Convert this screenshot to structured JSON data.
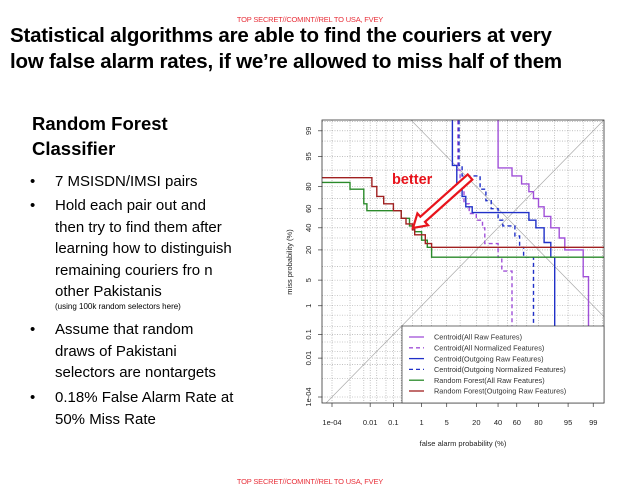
{
  "classification_top": "TOP SECRET//COMINT//REL TO USA, FVEY",
  "classification_bottom": "TOP SECRET//COMINT//REL TO USA, FVEY",
  "title_lines": [
    "Statistical algorithms are able to find the couriers at very",
    "low false alarm rates, if we’re allowed to miss half of them"
  ],
  "heading_lines": [
    "Random Forest",
    "Classifier"
  ],
  "bullets": [
    {
      "lines": [
        "7 MSISDN/IMSI pairs"
      ]
    },
    {
      "lines": [
        "Hold each pair out and",
        "then try to find them after",
        "learning how to distinguish",
        "remaining couriers fro n",
        "other Pakistanis"
      ],
      "note": "(using 100k random selectors here)"
    },
    {
      "lines": [
        "Assume that random",
        "draws of Pakistani",
        "selectors are nontargets"
      ]
    },
    {
      "lines": [
        "0.18% False Alarm Rate at",
        "50% Miss Rate"
      ]
    }
  ],
  "chart_data": {
    "type": "line",
    "plot_kind": "DET curve (normal-deviate / probit scaled axes)",
    "xlabel": "false alarm probability (%)",
    "ylabel": "miss probability (%)",
    "x_scale": "probit",
    "y_scale": "probit",
    "xlim": [
      3e-05,
      99.55
    ],
    "ylim": [
      3e-05,
      99.55
    ],
    "grid": true,
    "legend_position": "bottom-right",
    "x_ticks": [
      {
        "v": 0.0001,
        "label": "1e-04"
      },
      {
        "v": 0.01,
        "label": "0.01"
      },
      {
        "v": 0.1,
        "label": "0.1"
      },
      {
        "v": 1,
        "label": "1"
      },
      {
        "v": 5,
        "label": "5"
      },
      {
        "v": 20,
        "label": "20"
      },
      {
        "v": 40,
        "label": "40"
      },
      {
        "v": 60,
        "label": "60"
      },
      {
        "v": 80,
        "label": "80"
      },
      {
        "v": 95,
        "label": "95"
      },
      {
        "v": 99,
        "label": "99"
      }
    ],
    "y_ticks": [
      {
        "v": 0.0001,
        "label": "1e-04"
      },
      {
        "v": 0.01,
        "label": "0.01"
      },
      {
        "v": 0.1,
        "label": "0.1"
      },
      {
        "v": 1,
        "label": "1"
      },
      {
        "v": 5,
        "label": "5"
      },
      {
        "v": 20,
        "label": "20"
      },
      {
        "v": 40,
        "label": "40"
      },
      {
        "v": 60,
        "label": "60"
      },
      {
        "v": 80,
        "label": "80"
      },
      {
        "v": 95,
        "label": "95"
      },
      {
        "v": 99,
        "label": "99"
      }
    ],
    "annotation": {
      "text": "better",
      "color": "#e8141c"
    },
    "series": [
      {
        "name": "Centroid(All Raw Features)",
        "color": "#a050d8",
        "dash": false,
        "points": [
          [
            40,
            99.99
          ],
          [
            40,
            91
          ],
          [
            55,
            91
          ],
          [
            55,
            87
          ],
          [
            65,
            87
          ],
          [
            65,
            82
          ],
          [
            72,
            82
          ],
          [
            72,
            76
          ],
          [
            76,
            76
          ],
          [
            76,
            70
          ],
          [
            80,
            70
          ],
          [
            80,
            62
          ],
          [
            84,
            62
          ],
          [
            84,
            52
          ],
          [
            88,
            52
          ],
          [
            88,
            40
          ],
          [
            92,
            40
          ],
          [
            92,
            30
          ],
          [
            94,
            30
          ],
          [
            94,
            20
          ],
          [
            98,
            20
          ],
          [
            98,
            6
          ],
          [
            98.6,
            6
          ],
          [
            98.6,
            1e-05
          ]
        ]
      },
      {
        "name": "Centroid(All Normalized Features)",
        "color": "#a050d8",
        "dash": true,
        "points": [
          [
            9,
            99.99
          ],
          [
            9,
            90
          ],
          [
            10,
            90
          ],
          [
            10,
            80
          ],
          [
            12,
            80
          ],
          [
            12,
            65
          ],
          [
            15,
            65
          ],
          [
            15,
            55
          ],
          [
            20,
            55
          ],
          [
            20,
            48
          ],
          [
            25,
            48
          ],
          [
            25,
            40
          ],
          [
            27,
            40
          ],
          [
            27,
            25
          ],
          [
            40,
            25
          ],
          [
            40,
            15
          ],
          [
            44,
            15
          ],
          [
            44,
            8
          ],
          [
            55,
            8
          ],
          [
            55,
            1e-05
          ]
        ]
      },
      {
        "name": "Centroid(Outgoing Raw Features)",
        "color": "#2030c8",
        "dash": false,
        "points": [
          [
            6.8,
            99.99
          ],
          [
            6.8,
            92
          ],
          [
            8.5,
            92
          ],
          [
            8.5,
            80
          ],
          [
            11,
            80
          ],
          [
            11,
            72
          ],
          [
            13,
            72
          ],
          [
            13,
            62
          ],
          [
            17,
            62
          ],
          [
            17,
            56
          ],
          [
            72,
            56
          ],
          [
            72,
            48
          ],
          [
            78,
            48
          ],
          [
            78,
            40
          ],
          [
            84,
            40
          ],
          [
            84,
            26
          ],
          [
            88,
            26
          ],
          [
            88,
            15
          ],
          [
            90,
            15
          ],
          [
            90,
            1e-05
          ]
        ]
      },
      {
        "name": "Centroid(Outgoing Normalized Features)",
        "color": "#2030c8",
        "dash": true,
        "points": [
          [
            9.5,
            99.99
          ],
          [
            9.5,
            92
          ],
          [
            11,
            92
          ],
          [
            11,
            87
          ],
          [
            23,
            87
          ],
          [
            23,
            78
          ],
          [
            28,
            78
          ],
          [
            28,
            68
          ],
          [
            33,
            68
          ],
          [
            33,
            60
          ],
          [
            40,
            60
          ],
          [
            40,
            48
          ],
          [
            45,
            48
          ],
          [
            45,
            42
          ],
          [
            58,
            42
          ],
          [
            58,
            32
          ],
          [
            63,
            32
          ],
          [
            63,
            22
          ],
          [
            67,
            22
          ],
          [
            67,
            15
          ],
          [
            76,
            15
          ],
          [
            76,
            1e-05
          ]
        ]
      },
      {
        "name": "Random Forest(All Raw Features)",
        "color": "#2a8a2a",
        "dash": false,
        "points": [
          [
            2e-05,
            83
          ],
          [
            0.001,
            83
          ],
          [
            0.001,
            78
          ],
          [
            0.005,
            78
          ],
          [
            0.005,
            65
          ],
          [
            0.007,
            65
          ],
          [
            0.007,
            58
          ],
          [
            0.2,
            58
          ],
          [
            0.2,
            50
          ],
          [
            0.4,
            50
          ],
          [
            0.4,
            42
          ],
          [
            0.6,
            42
          ],
          [
            0.6,
            36
          ],
          [
            1,
            36
          ],
          [
            1,
            28
          ],
          [
            1.5,
            28
          ],
          [
            1.5,
            22
          ],
          [
            2,
            22
          ],
          [
            2,
            15
          ],
          [
            99.9,
            15
          ]
        ]
      },
      {
        "name": "Random Forest(Outgoing Raw Features)",
        "color": "#a02020",
        "dash": false,
        "points": [
          [
            2e-05,
            86
          ],
          [
            0.012,
            86
          ],
          [
            0.012,
            80
          ],
          [
            0.02,
            80
          ],
          [
            0.02,
            72
          ],
          [
            0.04,
            72
          ],
          [
            0.04,
            65
          ],
          [
            0.1,
            65
          ],
          [
            0.1,
            58
          ],
          [
            0.2,
            58
          ],
          [
            0.2,
            50
          ],
          [
            0.3,
            50
          ],
          [
            0.3,
            44
          ],
          [
            0.5,
            44
          ],
          [
            0.5,
            38
          ],
          [
            0.6,
            38
          ],
          [
            0.6,
            33
          ],
          [
            1.3,
            33
          ],
          [
            1.3,
            25
          ],
          [
            2,
            25
          ],
          [
            2,
            22
          ],
          [
            99.9,
            22
          ]
        ]
      }
    ]
  }
}
